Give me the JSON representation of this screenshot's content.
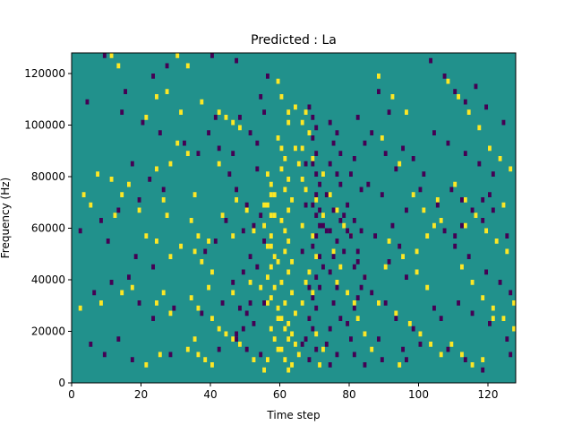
{
  "chart_data": {
    "type": "heatmap",
    "title": "Predicted : La",
    "xlabel": "Time step",
    "ylabel": "Frequency (Hz)",
    "xlim": [
      0,
      128
    ],
    "ylim": [
      0,
      128000
    ],
    "n_time_steps": 128,
    "n_freq_bins": 64,
    "x_ticks": [
      0,
      20,
      40,
      60,
      80,
      100,
      120
    ],
    "x_tick_labels": [
      "0",
      "20",
      "40",
      "60",
      "80",
      "100",
      "120"
    ],
    "y_ticks": [
      0,
      20000,
      40000,
      60000,
      80000,
      100000,
      120000
    ],
    "y_tick_labels": [
      "0",
      "20000",
      "40000",
      "60000",
      "80000",
      "100000",
      "120000"
    ],
    "colors": {
      "background": "#21918c",
      "high": "#fde725",
      "low": "#440154"
    },
    "cell_values": {
      "background": 0,
      "high": 1,
      "low": -1
    },
    "yellow_cells": [
      [
        11,
        126000
      ],
      [
        13,
        122000
      ],
      [
        30,
        126000
      ],
      [
        33,
        122000
      ],
      [
        27,
        112000
      ],
      [
        24,
        110000
      ],
      [
        21,
        102000
      ],
      [
        31,
        104000
      ],
      [
        37,
        108000
      ],
      [
        42,
        104000
      ],
      [
        44,
        102000
      ],
      [
        46,
        100000
      ],
      [
        48,
        98000
      ],
      [
        33,
        88000
      ],
      [
        30,
        92000
      ],
      [
        28,
        84000
      ],
      [
        7,
        80000
      ],
      [
        11,
        78000
      ],
      [
        16,
        76000
      ],
      [
        24,
        82000
      ],
      [
        42,
        84000
      ],
      [
        3,
        72000
      ],
      [
        14,
        72000
      ],
      [
        26,
        70000
      ],
      [
        35,
        72000
      ],
      [
        47,
        70000
      ],
      [
        5,
        68000
      ],
      [
        12,
        64000
      ],
      [
        19,
        66000
      ],
      [
        27,
        64000
      ],
      [
        34,
        62000
      ],
      [
        43,
        64000
      ],
      [
        50,
        66000
      ],
      [
        55,
        68000
      ],
      [
        21,
        56000
      ],
      [
        24,
        54000
      ],
      [
        31,
        52000
      ],
      [
        36,
        56000
      ],
      [
        39,
        54000
      ],
      [
        46,
        56000
      ],
      [
        52,
        58000
      ],
      [
        28,
        48000
      ],
      [
        35,
        50000
      ],
      [
        37,
        46000
      ],
      [
        40,
        42000
      ],
      [
        17,
        36000
      ],
      [
        26,
        34000
      ],
      [
        34,
        32000
      ],
      [
        39,
        36000
      ],
      [
        46,
        34000
      ],
      [
        51,
        38000
      ],
      [
        54,
        36000
      ],
      [
        2,
        28000
      ],
      [
        8,
        30000
      ],
      [
        14,
        34000
      ],
      [
        24,
        30000
      ],
      [
        28,
        26000
      ],
      [
        36,
        28000
      ],
      [
        40,
        24000
      ],
      [
        42,
        20000
      ],
      [
        44,
        18000
      ],
      [
        46,
        16000
      ],
      [
        48,
        14000
      ],
      [
        35,
        16000
      ],
      [
        33,
        12000
      ],
      [
        36,
        10000
      ],
      [
        38,
        8000
      ],
      [
        40,
        6000
      ],
      [
        25,
        10000
      ],
      [
        21,
        6000
      ],
      [
        52,
        8000
      ],
      [
        55,
        4000
      ],
      [
        56,
        80000
      ],
      [
        57,
        76000
      ],
      [
        58,
        72000
      ],
      [
        56,
        68000
      ],
      [
        58,
        64000
      ],
      [
        55,
        60000
      ],
      [
        57,
        56000
      ],
      [
        56,
        52000
      ],
      [
        58,
        48000
      ],
      [
        57,
        44000
      ],
      [
        56,
        40000
      ],
      [
        58,
        36000
      ],
      [
        57,
        32000
      ],
      [
        59,
        28000
      ],
      [
        60,
        24000
      ],
      [
        61,
        20000
      ],
      [
        62,
        16000
      ],
      [
        60,
        12000
      ],
      [
        61,
        8000
      ],
      [
        62,
        4000
      ],
      [
        57,
        20000
      ],
      [
        58,
        16000
      ],
      [
        59,
        12000
      ],
      [
        56,
        8000
      ],
      [
        59,
        94000
      ],
      [
        60,
        90000
      ],
      [
        61,
        86000
      ],
      [
        60,
        82000
      ],
      [
        62,
        78000
      ],
      [
        61,
        74000
      ],
      [
        63,
        70000
      ],
      [
        62,
        66000
      ],
      [
        60,
        62000
      ],
      [
        61,
        58000
      ],
      [
        62,
        54000
      ],
      [
        61,
        50000
      ],
      [
        63,
        46000
      ],
      [
        62,
        42000
      ],
      [
        60,
        38000
      ],
      [
        63,
        34000
      ],
      [
        61,
        30000
      ],
      [
        64,
        26000
      ],
      [
        62,
        22000
      ],
      [
        63,
        18000
      ],
      [
        64,
        14000
      ],
      [
        65,
        10000
      ],
      [
        63,
        6000
      ],
      [
        57,
        72000
      ],
      [
        57,
        64000
      ],
      [
        57,
        52000
      ],
      [
        59,
        46000
      ],
      [
        56,
        30000
      ],
      [
        59,
        24000
      ],
      [
        66,
        100000
      ],
      [
        67,
        104000
      ],
      [
        68,
        96000
      ],
      [
        64,
        90000
      ],
      [
        65,
        84000
      ],
      [
        66,
        78000
      ],
      [
        67,
        74000
      ],
      [
        70,
        70000
      ],
      [
        72,
        64000
      ],
      [
        66,
        60000
      ],
      [
        69,
        56000
      ],
      [
        70,
        48000
      ],
      [
        68,
        42000
      ],
      [
        67,
        38000
      ],
      [
        69,
        34000
      ],
      [
        66,
        30000
      ],
      [
        68,
        24000
      ],
      [
        70,
        18000
      ],
      [
        72,
        12000
      ],
      [
        71,
        6000
      ],
      [
        59,
        116000
      ],
      [
        60,
        110000
      ],
      [
        62,
        104000
      ],
      [
        64,
        106000
      ],
      [
        62,
        100000
      ],
      [
        66,
        90000
      ],
      [
        69,
        86000
      ],
      [
        72,
        80000
      ],
      [
        74,
        72000
      ],
      [
        76,
        66000
      ],
      [
        78,
        60000
      ],
      [
        80,
        56000
      ],
      [
        75,
        50000
      ],
      [
        77,
        44000
      ],
      [
        76,
        38000
      ],
      [
        79,
        34000
      ],
      [
        81,
        30000
      ],
      [
        82,
        24000
      ],
      [
        84,
        18000
      ],
      [
        86,
        12000
      ],
      [
        88,
        118000
      ],
      [
        92,
        110000
      ],
      [
        96,
        104000
      ],
      [
        89,
        94000
      ],
      [
        94,
        84000
      ],
      [
        98,
        72000
      ],
      [
        101,
        66000
      ],
      [
        104,
        60000
      ],
      [
        91,
        54000
      ],
      [
        95,
        48000
      ],
      [
        99,
        42000
      ],
      [
        102,
        36000
      ],
      [
        88,
        30000
      ],
      [
        93,
        26000
      ],
      [
        97,
        22000
      ],
      [
        100,
        18000
      ],
      [
        103,
        14000
      ],
      [
        106,
        10000
      ],
      [
        108,
        116000
      ],
      [
        111,
        110000
      ],
      [
        114,
        104000
      ],
      [
        117,
        98000
      ],
      [
        120,
        90000
      ],
      [
        123,
        86000
      ],
      [
        126,
        82000
      ],
      [
        110,
        76000
      ],
      [
        113,
        70000
      ],
      [
        116,
        64000
      ],
      [
        119,
        58000
      ],
      [
        122,
        54000
      ],
      [
        125,
        50000
      ],
      [
        112,
        44000
      ],
      [
        115,
        38000
      ],
      [
        118,
        32000
      ],
      [
        121,
        28000
      ],
      [
        124,
        24000
      ],
      [
        127,
        20000
      ],
      [
        109,
        14000
      ],
      [
        112,
        10000
      ],
      [
        115,
        6000
      ],
      [
        106,
        62000
      ],
      [
        105,
        70000
      ],
      [
        113,
        60000
      ],
      [
        102,
        56000
      ],
      [
        124,
        68000
      ],
      [
        127,
        30000
      ],
      [
        121,
        24000
      ],
      [
        118,
        8000
      ],
      [
        94,
        6000
      ],
      [
        99,
        50000
      ],
      [
        84,
        40000
      ],
      [
        90,
        44000
      ]
    ],
    "dark_cells": [
      [
        9,
        126000
      ],
      [
        27,
        122000
      ],
      [
        40,
        126000
      ],
      [
        47,
        124000
      ],
      [
        23,
        118000
      ],
      [
        15,
        112000
      ],
      [
        4,
        108000
      ],
      [
        14,
        104000
      ],
      [
        20,
        100000
      ],
      [
        25,
        96000
      ],
      [
        32,
        92000
      ],
      [
        39,
        96000
      ],
      [
        41,
        102000
      ],
      [
        36,
        88000
      ],
      [
        17,
        84000
      ],
      [
        22,
        78000
      ],
      [
        26,
        74000
      ],
      [
        19,
        70000
      ],
      [
        13,
        66000
      ],
      [
        8,
        62000
      ],
      [
        2,
        58000
      ],
      [
        10,
        54000
      ],
      [
        44,
        62000
      ],
      [
        49,
        58000
      ],
      [
        41,
        54000
      ],
      [
        38,
        50000
      ],
      [
        23,
        44000
      ],
      [
        18,
        48000
      ],
      [
        16,
        40000
      ],
      [
        11,
        38000
      ],
      [
        6,
        34000
      ],
      [
        19,
        30000
      ],
      [
        43,
        30000
      ],
      [
        37,
        26000
      ],
      [
        29,
        28000
      ],
      [
        23,
        24000
      ],
      [
        48,
        28000
      ],
      [
        52,
        22000
      ],
      [
        47,
        18000
      ],
      [
        42,
        12000
      ],
      [
        28,
        10000
      ],
      [
        17,
        8000
      ],
      [
        9,
        10000
      ],
      [
        5,
        14000
      ],
      [
        13,
        16000
      ],
      [
        50,
        12000
      ],
      [
        54,
        10000
      ],
      [
        48,
        102000
      ],
      [
        51,
        96000
      ],
      [
        53,
        92000
      ],
      [
        42,
        90000
      ],
      [
        46,
        88000
      ],
      [
        55,
        104000
      ],
      [
        54,
        110000
      ],
      [
        56,
        118000
      ],
      [
        53,
        82000
      ],
      [
        45,
        80000
      ],
      [
        47,
        74000
      ],
      [
        50,
        68000
      ],
      [
        54,
        64000
      ],
      [
        52,
        60000
      ],
      [
        55,
        54000
      ],
      [
        51,
        48000
      ],
      [
        53,
        44000
      ],
      [
        49,
        42000
      ],
      [
        46,
        38000
      ],
      [
        51,
        30000
      ],
      [
        50,
        26000
      ],
      [
        55,
        30000
      ],
      [
        49,
        20000
      ],
      [
        47,
        16000
      ],
      [
        68,
        106000
      ],
      [
        69,
        102000
      ],
      [
        70,
        98000
      ],
      [
        69,
        94000
      ],
      [
        70,
        88000
      ],
      [
        69,
        84000
      ],
      [
        70,
        80000
      ],
      [
        71,
        76000
      ],
      [
        70,
        72000
      ],
      [
        69,
        68000
      ],
      [
        70,
        64000
      ],
      [
        71,
        60000
      ],
      [
        70,
        56000
      ],
      [
        69,
        52000
      ],
      [
        71,
        48000
      ],
      [
        72,
        44000
      ],
      [
        70,
        40000
      ],
      [
        71,
        36000
      ],
      [
        69,
        32000
      ],
      [
        70,
        28000
      ],
      [
        68,
        24000
      ],
      [
        69,
        20000
      ],
      [
        67,
        16000
      ],
      [
        70,
        12000
      ],
      [
        68,
        8000
      ],
      [
        67,
        84000
      ],
      [
        67,
        68000
      ],
      [
        66,
        50000
      ],
      [
        68,
        36000
      ],
      [
        66,
        14000
      ],
      [
        74,
        100000
      ],
      [
        76,
        96000
      ],
      [
        75,
        92000
      ],
      [
        77,
        88000
      ],
      [
        74,
        84000
      ],
      [
        76,
        80000
      ],
      [
        77,
        76000
      ],
      [
        73,
        72000
      ],
      [
        75,
        66000
      ],
      [
        77,
        62000
      ],
      [
        74,
        58000
      ],
      [
        76,
        54000
      ],
      [
        75,
        48000
      ],
      [
        74,
        42000
      ],
      [
        76,
        36000
      ],
      [
        75,
        30000
      ],
      [
        77,
        24000
      ],
      [
        74,
        20000
      ],
      [
        73,
        14000
      ],
      [
        76,
        10000
      ],
      [
        74,
        6000
      ],
      [
        82,
        102000
      ],
      [
        84,
        92000
      ],
      [
        81,
        86000
      ],
      [
        80,
        80000
      ],
      [
        83,
        74000
      ],
      [
        79,
        68000
      ],
      [
        81,
        62000
      ],
      [
        80,
        56000
      ],
      [
        82,
        50000
      ],
      [
        81,
        44000
      ],
      [
        84,
        40000
      ],
      [
        83,
        36000
      ],
      [
        82,
        32000
      ],
      [
        81,
        28000
      ],
      [
        79,
        22000
      ],
      [
        80,
        16000
      ],
      [
        81,
        10000
      ],
      [
        84,
        6000
      ],
      [
        71,
        66000
      ],
      [
        72,
        60000
      ],
      [
        78,
        64000
      ],
      [
        73,
        58000
      ],
      [
        79,
        58000
      ],
      [
        83,
        58000
      ],
      [
        78,
        50000
      ],
      [
        82,
        46000
      ],
      [
        88,
        112000
      ],
      [
        91,
        104000
      ],
      [
        86,
        96000
      ],
      [
        90,
        88000
      ],
      [
        93,
        82000
      ],
      [
        85,
        76000
      ],
      [
        89,
        72000
      ],
      [
        96,
        66000
      ],
      [
        92,
        60000
      ],
      [
        87,
        56000
      ],
      [
        94,
        52000
      ],
      [
        91,
        46000
      ],
      [
        96,
        40000
      ],
      [
        86,
        34000
      ],
      [
        90,
        30000
      ],
      [
        93,
        24000
      ],
      [
        98,
        20000
      ],
      [
        88,
        16000
      ],
      [
        95,
        12000
      ],
      [
        89,
        8000
      ],
      [
        103,
        124000
      ],
      [
        107,
        118000
      ],
      [
        110,
        112000
      ],
      [
        113,
        108000
      ],
      [
        116,
        114000
      ],
      [
        119,
        106000
      ],
      [
        124,
        100000
      ],
      [
        104,
        96000
      ],
      [
        108,
        92000
      ],
      [
        113,
        88000
      ],
      [
        117,
        84000
      ],
      [
        121,
        80000
      ],
      [
        109,
        74000
      ],
      [
        112,
        70000
      ],
      [
        115,
        66000
      ],
      [
        118,
        62000
      ],
      [
        125,
        56000
      ],
      [
        110,
        52000
      ],
      [
        114,
        48000
      ],
      [
        119,
        42000
      ],
      [
        123,
        38000
      ],
      [
        126,
        34000
      ],
      [
        111,
        30000
      ],
      [
        115,
        26000
      ],
      [
        120,
        22000
      ],
      [
        125,
        16000
      ],
      [
        108,
        12000
      ],
      [
        113,
        8000
      ],
      [
        118,
        4000
      ],
      [
        95,
        90000
      ],
      [
        98,
        86000
      ],
      [
        101,
        80000
      ],
      [
        100,
        74000
      ],
      [
        105,
        68000
      ],
      [
        107,
        58000
      ],
      [
        110,
        56000
      ],
      [
        112,
        60000
      ],
      [
        118,
        70000
      ],
      [
        120,
        72000
      ],
      [
        121,
        66000
      ],
      [
        104,
        28000
      ],
      [
        106,
        24000
      ],
      [
        100,
        14000
      ],
      [
        96,
        8000
      ],
      [
        126,
        10000
      ]
    ]
  }
}
